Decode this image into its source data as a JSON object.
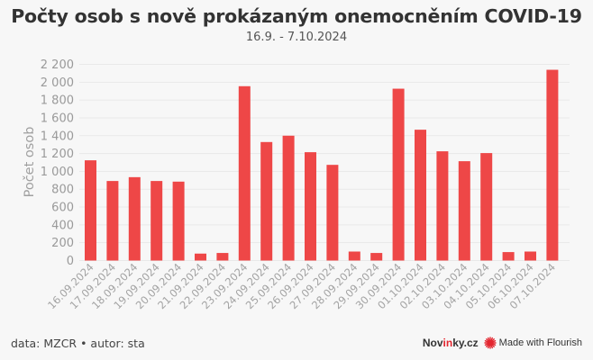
{
  "header": {
    "title": "Počty osob s nově prokázaným onemocněním COVID-19",
    "subtitle": "16.9. - 7.10.2024"
  },
  "footer": {
    "source": "data: MZCR • autor: sta",
    "brand_part1": "Nov",
    "brand_part2": "in",
    "brand_part3": "ky.cz",
    "made_with": "Made with Flourish"
  },
  "colors": {
    "bar": "#ee4747",
    "background": "#f7f7f7",
    "grid": "#e9e9e9",
    "brand_red": "#e3262f"
  },
  "chart_data": {
    "type": "bar",
    "title": "Počty osob s nově prokázaným onemocněním COVID-19",
    "subtitle": "16.9. - 7.10.2024",
    "xlabel": "",
    "ylabel": "Počet osob",
    "ylim": [
      0,
      2200
    ],
    "yticks": [
      0,
      200,
      400,
      600,
      800,
      1000,
      1200,
      1400,
      1600,
      1800,
      2000,
      2200
    ],
    "ytick_labels": [
      "0",
      "200",
      "400",
      "600",
      "800",
      "1 000",
      "1 200",
      "1 400",
      "1 600",
      "1 800",
      "2 000",
      "2 200"
    ],
    "grid": true,
    "legend": null,
    "categories": [
      "16.09.2024",
      "17.09.2024",
      "18.09.2024",
      "19.09.2024",
      "20.09.2024",
      "21.09.2024",
      "22.09.2024",
      "23.09.2024",
      "24.09.2024",
      "25.09.2024",
      "26.09.2024",
      "27.09.2024",
      "28.09.2024",
      "29.09.2024",
      "30.09.2024",
      "01.10.2024",
      "02.10.2024",
      "03.10.2024",
      "04.10.2024",
      "05.10.2024",
      "06.10.2024",
      "07.10.2024"
    ],
    "values": [
      1124,
      892,
      935,
      892,
      885,
      78,
      85,
      1955,
      1329,
      1400,
      1215,
      1073,
      101,
      85,
      1927,
      1467,
      1225,
      1114,
      1205,
      95,
      101,
      2139
    ],
    "source": "data: MZCR • autor: sta"
  }
}
